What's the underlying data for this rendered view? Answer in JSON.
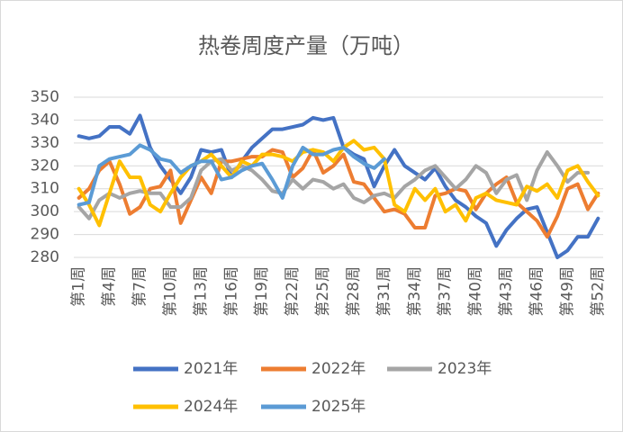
{
  "chart_data": {
    "type": "line",
    "title": "热卷周度产量（万吨）",
    "categories": [
      "第1周",
      null,
      null,
      "第4周",
      null,
      null,
      "第7周",
      null,
      null,
      "第10周",
      null,
      null,
      "第13周",
      null,
      null,
      "第16周",
      null,
      null,
      "第19周",
      null,
      null,
      "第22周",
      null,
      null,
      "第25周",
      null,
      null,
      "第28周",
      null,
      null,
      "第31周",
      null,
      null,
      "第34周",
      null,
      null,
      "第37周",
      null,
      null,
      "第40周",
      null,
      null,
      "第43周",
      null,
      null,
      "第46周",
      null,
      null,
      "第49周",
      null,
      null,
      "第52周"
    ],
    "series": [
      {
        "name": "2021年",
        "color": "#4472c4",
        "values": [
          333,
          332,
          333,
          337,
          337,
          334,
          342,
          328,
          320,
          314,
          308,
          315,
          327,
          326,
          327,
          315,
          322,
          328,
          332,
          336,
          336,
          337,
          338,
          341,
          340,
          341,
          328,
          325,
          323,
          311,
          320,
          327,
          320,
          317,
          314,
          319,
          311,
          305,
          302,
          298,
          295,
          285,
          292,
          297,
          301,
          302,
          291,
          280,
          283,
          289,
          289,
          297
        ]
      },
      {
        "name": "2022年",
        "color": "#ed7d31",
        "values": [
          306,
          310,
          318,
          322,
          312,
          299,
          302,
          310,
          311,
          318,
          295,
          305,
          315,
          308,
          322,
          322,
          323,
          324,
          324,
          327,
          326,
          315,
          319,
          327,
          317,
          320,
          325,
          313,
          312,
          306,
          300,
          301,
          299,
          293,
          293,
          307,
          308,
          310,
          309,
          301,
          308,
          312,
          315,
          304,
          300,
          296,
          289,
          298,
          310,
          312,
          301,
          308
        ]
      },
      {
        "name": "2023年",
        "color": "#a5a5a5",
        "values": [
          302,
          297,
          305,
          308,
          306,
          308,
          309,
          308,
          308,
          302,
          302,
          306,
          318,
          322,
          323,
          318,
          320,
          318,
          314,
          309,
          308,
          314,
          310,
          314,
          313,
          310,
          312,
          306,
          304,
          307,
          308,
          306,
          311,
          314,
          318,
          320,
          315,
          310,
          314,
          320,
          317,
          308,
          314,
          316,
          305,
          318,
          326,
          320,
          313,
          317,
          317,
          null
        ]
      },
      {
        "name": "2024年",
        "color": "#ffc000",
        "values": [
          310,
          303,
          294,
          308,
          322,
          315,
          315,
          303,
          300,
          308,
          315,
          320,
          322,
          325,
          320,
          315,
          322,
          320,
          325,
          325,
          324,
          322,
          326,
          327,
          326,
          322,
          328,
          331,
          327,
          328,
          323,
          303,
          300,
          310,
          305,
          310,
          300,
          303,
          296,
          306,
          308,
          305,
          304,
          303,
          311,
          309,
          312,
          306,
          318,
          320,
          313,
          307
        ]
      },
      {
        "name": "2025年",
        "color": "#5b9bd5",
        "values": [
          303,
          304,
          320,
          323,
          324,
          325,
          329,
          327,
          323,
          322,
          317,
          320,
          322,
          322,
          314,
          315,
          318,
          320,
          321,
          314,
          306,
          320,
          328,
          325,
          325,
          327,
          328,
          324,
          321,
          319,
          323,
          null,
          null,
          null,
          null,
          null,
          null,
          null,
          null,
          null,
          null,
          null,
          null,
          null,
          null,
          null,
          null,
          null,
          null,
          null,
          null,
          null
        ]
      }
    ],
    "ylim": [
      280,
      350
    ],
    "yticks": [
      280,
      290,
      300,
      310,
      320,
      330,
      340,
      350
    ],
    "grid": true
  }
}
